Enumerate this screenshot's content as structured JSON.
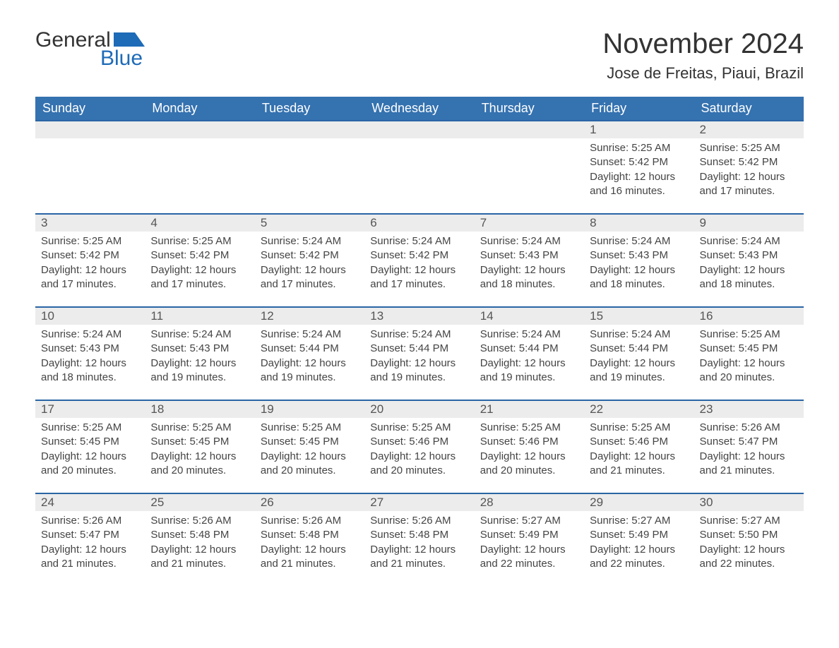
{
  "logo": {
    "word1": "General",
    "word2": "Blue"
  },
  "header": {
    "month_title": "November 2024",
    "location": "Jose de Freitas, Piaui, Brazil"
  },
  "colors": {
    "header_bg": "#3572b0",
    "header_text": "#ffffff",
    "daynum_bg": "#ececec",
    "daynum_border": "#2a65a5",
    "logo_blue": "#1e6bb8",
    "text": "#333333",
    "body_text": "#444444",
    "page_bg": "#ffffff"
  },
  "weekdays": [
    "Sunday",
    "Monday",
    "Tuesday",
    "Wednesday",
    "Thursday",
    "Friday",
    "Saturday"
  ],
  "weeks": [
    [
      {
        "empty": true
      },
      {
        "empty": true
      },
      {
        "empty": true
      },
      {
        "empty": true
      },
      {
        "empty": true
      },
      {
        "n": "1",
        "sunrise": "Sunrise: 5:25 AM",
        "sunset": "Sunset: 5:42 PM",
        "daylight": "Daylight: 12 hours and 16 minutes."
      },
      {
        "n": "2",
        "sunrise": "Sunrise: 5:25 AM",
        "sunset": "Sunset: 5:42 PM",
        "daylight": "Daylight: 12 hours and 17 minutes."
      }
    ],
    [
      {
        "n": "3",
        "sunrise": "Sunrise: 5:25 AM",
        "sunset": "Sunset: 5:42 PM",
        "daylight": "Daylight: 12 hours and 17 minutes."
      },
      {
        "n": "4",
        "sunrise": "Sunrise: 5:25 AM",
        "sunset": "Sunset: 5:42 PM",
        "daylight": "Daylight: 12 hours and 17 minutes."
      },
      {
        "n": "5",
        "sunrise": "Sunrise: 5:24 AM",
        "sunset": "Sunset: 5:42 PM",
        "daylight": "Daylight: 12 hours and 17 minutes."
      },
      {
        "n": "6",
        "sunrise": "Sunrise: 5:24 AM",
        "sunset": "Sunset: 5:42 PM",
        "daylight": "Daylight: 12 hours and 17 minutes."
      },
      {
        "n": "7",
        "sunrise": "Sunrise: 5:24 AM",
        "sunset": "Sunset: 5:43 PM",
        "daylight": "Daylight: 12 hours and 18 minutes."
      },
      {
        "n": "8",
        "sunrise": "Sunrise: 5:24 AM",
        "sunset": "Sunset: 5:43 PM",
        "daylight": "Daylight: 12 hours and 18 minutes."
      },
      {
        "n": "9",
        "sunrise": "Sunrise: 5:24 AM",
        "sunset": "Sunset: 5:43 PM",
        "daylight": "Daylight: 12 hours and 18 minutes."
      }
    ],
    [
      {
        "n": "10",
        "sunrise": "Sunrise: 5:24 AM",
        "sunset": "Sunset: 5:43 PM",
        "daylight": "Daylight: 12 hours and 18 minutes."
      },
      {
        "n": "11",
        "sunrise": "Sunrise: 5:24 AM",
        "sunset": "Sunset: 5:43 PM",
        "daylight": "Daylight: 12 hours and 19 minutes."
      },
      {
        "n": "12",
        "sunrise": "Sunrise: 5:24 AM",
        "sunset": "Sunset: 5:44 PM",
        "daylight": "Daylight: 12 hours and 19 minutes."
      },
      {
        "n": "13",
        "sunrise": "Sunrise: 5:24 AM",
        "sunset": "Sunset: 5:44 PM",
        "daylight": "Daylight: 12 hours and 19 minutes."
      },
      {
        "n": "14",
        "sunrise": "Sunrise: 5:24 AM",
        "sunset": "Sunset: 5:44 PM",
        "daylight": "Daylight: 12 hours and 19 minutes."
      },
      {
        "n": "15",
        "sunrise": "Sunrise: 5:24 AM",
        "sunset": "Sunset: 5:44 PM",
        "daylight": "Daylight: 12 hours and 19 minutes."
      },
      {
        "n": "16",
        "sunrise": "Sunrise: 5:25 AM",
        "sunset": "Sunset: 5:45 PM",
        "daylight": "Daylight: 12 hours and 20 minutes."
      }
    ],
    [
      {
        "n": "17",
        "sunrise": "Sunrise: 5:25 AM",
        "sunset": "Sunset: 5:45 PM",
        "daylight": "Daylight: 12 hours and 20 minutes."
      },
      {
        "n": "18",
        "sunrise": "Sunrise: 5:25 AM",
        "sunset": "Sunset: 5:45 PM",
        "daylight": "Daylight: 12 hours and 20 minutes."
      },
      {
        "n": "19",
        "sunrise": "Sunrise: 5:25 AM",
        "sunset": "Sunset: 5:45 PM",
        "daylight": "Daylight: 12 hours and 20 minutes."
      },
      {
        "n": "20",
        "sunrise": "Sunrise: 5:25 AM",
        "sunset": "Sunset: 5:46 PM",
        "daylight": "Daylight: 12 hours and 20 minutes."
      },
      {
        "n": "21",
        "sunrise": "Sunrise: 5:25 AM",
        "sunset": "Sunset: 5:46 PM",
        "daylight": "Daylight: 12 hours and 20 minutes."
      },
      {
        "n": "22",
        "sunrise": "Sunrise: 5:25 AM",
        "sunset": "Sunset: 5:46 PM",
        "daylight": "Daylight: 12 hours and 21 minutes."
      },
      {
        "n": "23",
        "sunrise": "Sunrise: 5:26 AM",
        "sunset": "Sunset: 5:47 PM",
        "daylight": "Daylight: 12 hours and 21 minutes."
      }
    ],
    [
      {
        "n": "24",
        "sunrise": "Sunrise: 5:26 AM",
        "sunset": "Sunset: 5:47 PM",
        "daylight": "Daylight: 12 hours and 21 minutes."
      },
      {
        "n": "25",
        "sunrise": "Sunrise: 5:26 AM",
        "sunset": "Sunset: 5:48 PM",
        "daylight": "Daylight: 12 hours and 21 minutes."
      },
      {
        "n": "26",
        "sunrise": "Sunrise: 5:26 AM",
        "sunset": "Sunset: 5:48 PM",
        "daylight": "Daylight: 12 hours and 21 minutes."
      },
      {
        "n": "27",
        "sunrise": "Sunrise: 5:26 AM",
        "sunset": "Sunset: 5:48 PM",
        "daylight": "Daylight: 12 hours and 21 minutes."
      },
      {
        "n": "28",
        "sunrise": "Sunrise: 5:27 AM",
        "sunset": "Sunset: 5:49 PM",
        "daylight": "Daylight: 12 hours and 22 minutes."
      },
      {
        "n": "29",
        "sunrise": "Sunrise: 5:27 AM",
        "sunset": "Sunset: 5:49 PM",
        "daylight": "Daylight: 12 hours and 22 minutes."
      },
      {
        "n": "30",
        "sunrise": "Sunrise: 5:27 AM",
        "sunset": "Sunset: 5:50 PM",
        "daylight": "Daylight: 12 hours and 22 minutes."
      }
    ]
  ]
}
